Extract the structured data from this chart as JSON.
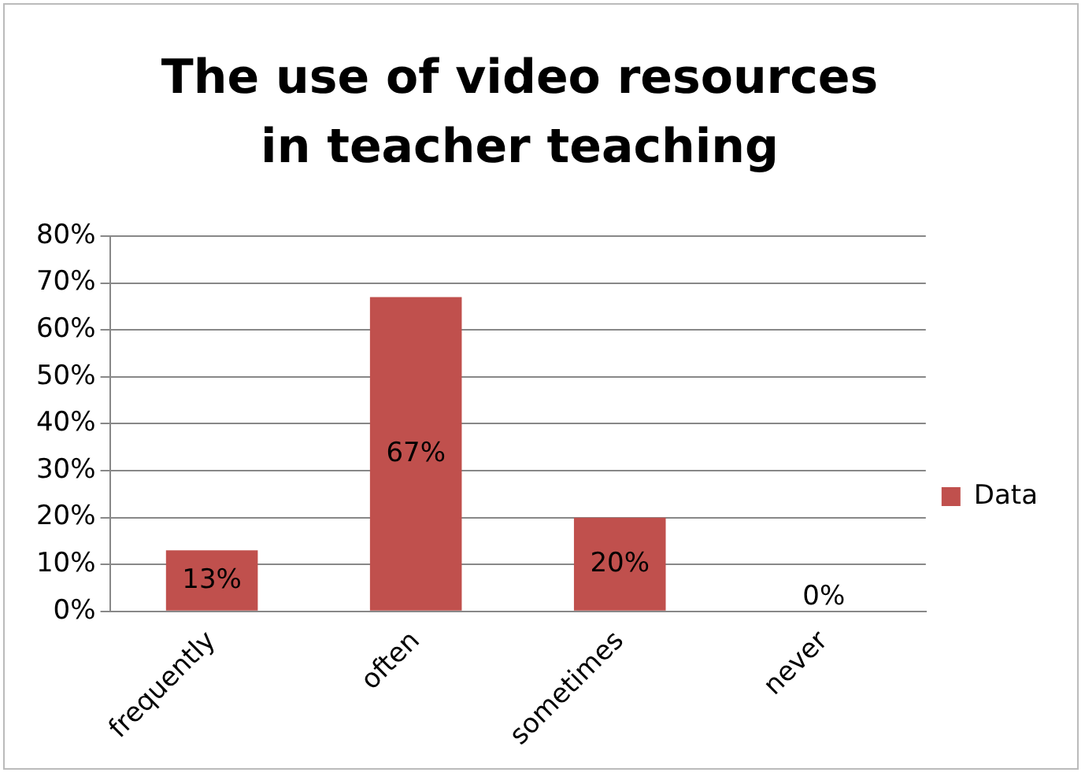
{
  "chart_data": {
    "type": "bar",
    "title": "The use of video resources in teacher teaching",
    "categories": [
      "frequently",
      "often",
      "sometimes",
      "never"
    ],
    "series": [
      {
        "name": "Data",
        "color": "#c0504d",
        "values": [
          13,
          67,
          20,
          0
        ],
        "value_labels": [
          "13%",
          "67%",
          "20%",
          "0%"
        ]
      }
    ],
    "ylim": [
      0,
      80
    ],
    "yticks": [
      {
        "value": 0,
        "label": "0%"
      },
      {
        "value": 10,
        "label": "10%"
      },
      {
        "value": 20,
        "label": "20%"
      },
      {
        "value": 30,
        "label": "30%"
      },
      {
        "value": 40,
        "label": "40%"
      },
      {
        "value": 50,
        "label": "50%"
      },
      {
        "value": 60,
        "label": "60%"
      },
      {
        "value": 70,
        "label": "70%"
      },
      {
        "value": 80,
        "label": "80%"
      }
    ],
    "grid": "y",
    "legend": "right"
  }
}
